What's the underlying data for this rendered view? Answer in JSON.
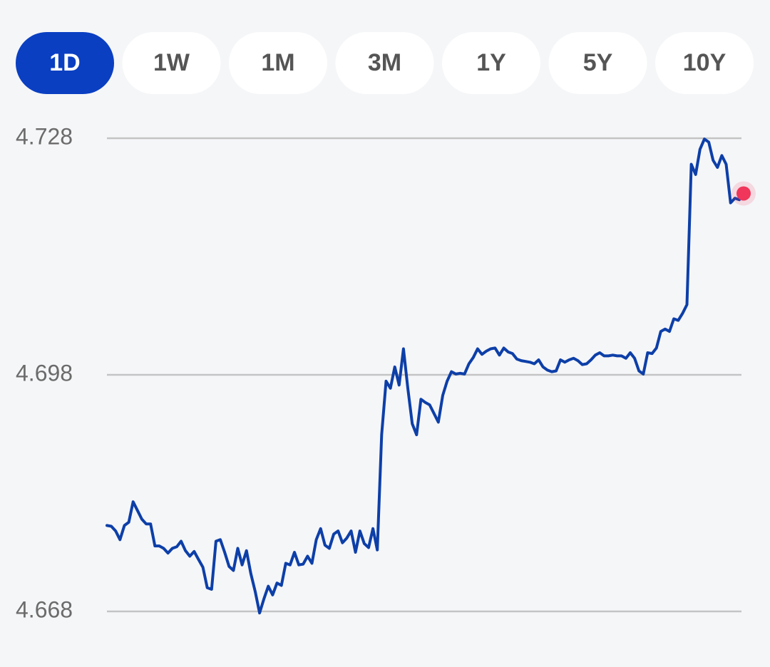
{
  "tabs": {
    "items": [
      "1D",
      "1W",
      "1M",
      "3M",
      "1Y",
      "5Y",
      "10Y"
    ],
    "selected": 0
  },
  "chart_data": {
    "type": "line",
    "color": "#0d3fa8",
    "marker_color": "#f0365a",
    "grid": true,
    "ylim": [
      4.668,
      4.728
    ],
    "yticks": [
      4.668,
      4.698,
      4.728
    ],
    "values": [
      4.6789,
      4.6788,
      4.6782,
      4.6771,
      4.6789,
      4.6793,
      4.6819,
      4.6808,
      4.6797,
      4.6791,
      4.6791,
      4.6763,
      4.6763,
      4.676,
      4.6754,
      4.676,
      4.6762,
      4.6769,
      4.6757,
      4.675,
      4.6756,
      4.6746,
      4.6736,
      4.671,
      4.6708,
      4.6769,
      4.6771,
      4.6755,
      4.6737,
      4.6732,
      4.676,
      4.6739,
      4.6757,
      4.6728,
      4.6705,
      4.6678,
      4.6696,
      4.6712,
      4.6701,
      4.6716,
      4.6713,
      4.6741,
      4.6739,
      4.6755,
      4.6739,
      4.674,
      4.675,
      4.6741,
      4.6771,
      4.6785,
      4.6764,
      4.676,
      4.6778,
      4.6782,
      4.6767,
      4.6773,
      4.6782,
      4.6755,
      4.6782,
      4.6766,
      4.6761,
      4.6785,
      4.6758,
      4.6904,
      4.6972,
      4.6963,
      4.699,
      4.6967,
      4.7013,
      4.6963,
      4.6918,
      4.6904,
      4.6949,
      4.6945,
      4.6942,
      4.6931,
      4.692,
      4.6954,
      4.6972,
      4.6984,
      4.6981,
      4.6982,
      4.6981,
      4.6994,
      4.7002,
      4.7013,
      4.7006,
      4.701,
      4.7013,
      4.7014,
      4.7005,
      4.7014,
      4.7009,
      4.7007,
      4.7,
      4.6998,
      4.6997,
      4.6996,
      4.6994,
      4.6999,
      4.699,
      4.6986,
      4.6984,
      4.6985,
      4.6999,
      4.6996,
      4.6999,
      4.7001,
      4.6998,
      4.6993,
      4.6994,
      4.6999,
      4.7005,
      4.7008,
      4.7004,
      4.7004,
      4.7005,
      4.7004,
      4.7004,
      4.7001,
      4.7008,
      4.7001,
      4.6985,
      4.6981,
      4.7008,
      4.7007,
      4.7014,
      4.7035,
      4.7038,
      4.7035,
      4.7051,
      4.7049,
      4.7058,
      4.7069,
      4.7247,
      4.7234,
      4.7266,
      4.7279,
      4.7275,
      4.7252,
      4.7243,
      4.7258,
      4.7247,
      4.7198,
      4.7204,
      4.7202,
      4.721
    ]
  }
}
